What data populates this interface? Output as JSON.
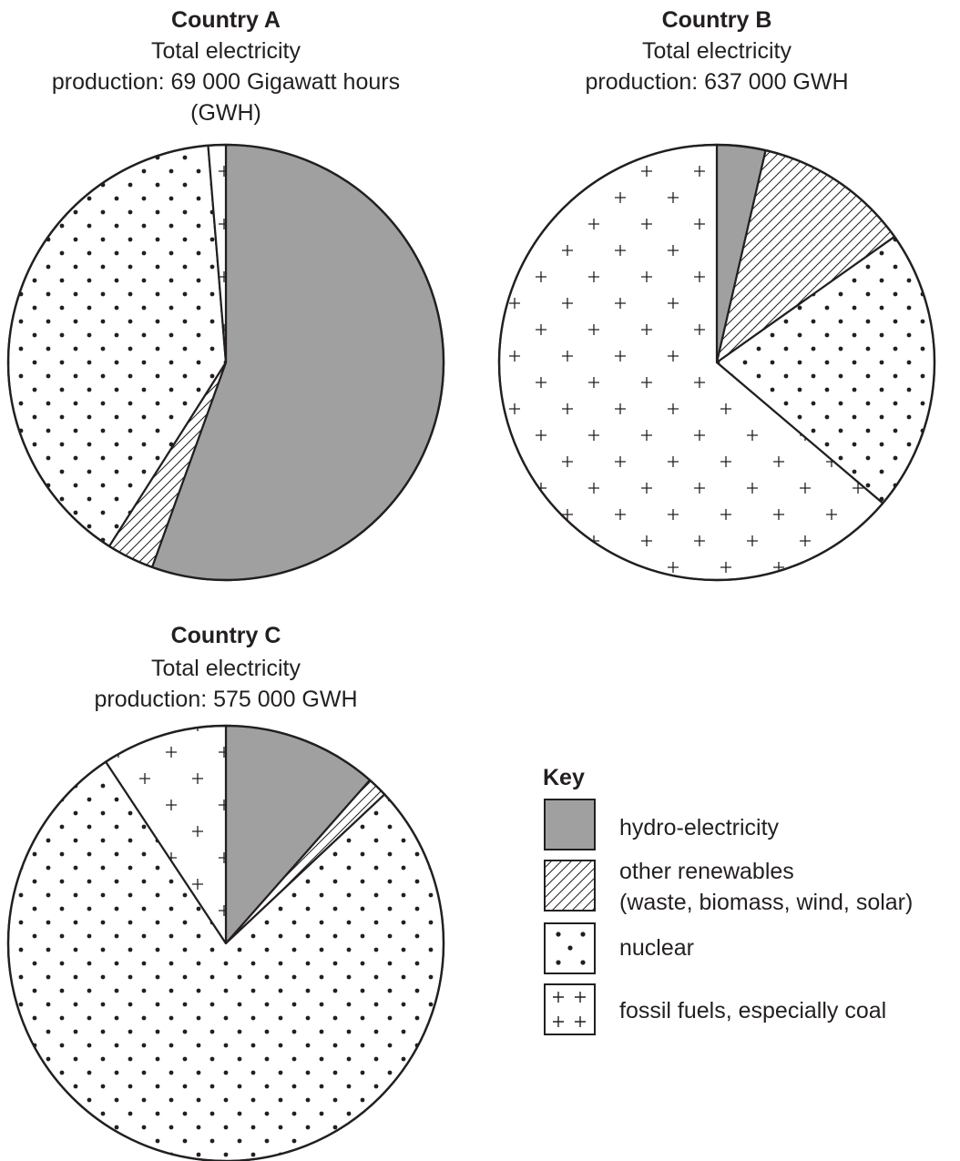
{
  "chart_data": [
    {
      "type": "pie",
      "title": "Country A",
      "subtitle": [
        "Total electricity",
        "production: 69 000 Gigawatt hours",
        "(GWH)"
      ],
      "slices": [
        {
          "label": "hydro-electricity",
          "value": 55.5
        },
        {
          "label": "other renewables (waste, biomass, wind, solar)",
          "value": 3.5
        },
        {
          "label": "nuclear",
          "value": 39.7
        },
        {
          "label": "fossil fuels, especially coal",
          "value": 1.3
        }
      ]
    },
    {
      "type": "pie",
      "title": "Country B",
      "subtitle": [
        "Total electricity",
        "production: 637 000 GWH"
      ],
      "slices": [
        {
          "label": "hydro-electricity",
          "value": 3.6
        },
        {
          "label": "other renewables (waste, biomass, wind, solar)",
          "value": 11.6
        },
        {
          "label": "nuclear",
          "value": 21.0
        },
        {
          "label": "fossil fuels, especially coal",
          "value": 63.8
        }
      ]
    },
    {
      "type": "pie",
      "title": "Country C",
      "subtitle": [
        "Total electricity",
        "production: 575 000 GWH"
      ],
      "slices": [
        {
          "label": "hydro-electricity",
          "value": 11.5
        },
        {
          "label": "other renewables (waste, biomass, wind, solar)",
          "value": 1.5
        },
        {
          "label": "nuclear",
          "value": 77.7
        },
        {
          "label": "fossil fuels, especially coal",
          "value": 9.3
        }
      ]
    }
  ],
  "key": {
    "title": "Key",
    "items": [
      {
        "id": "hydro",
        "lines": [
          "hydro-electricity"
        ],
        "pattern": "solid-grey"
      },
      {
        "id": "renewables",
        "lines": [
          "other renewables",
          "(waste, biomass, wind, solar)"
        ],
        "pattern": "diagonal-hatch"
      },
      {
        "id": "nuclear",
        "lines": [
          "nuclear"
        ],
        "pattern": "dots"
      },
      {
        "id": "fossil",
        "lines": [
          "fossil fuels, especially coal"
        ],
        "pattern": "crosses"
      }
    ]
  },
  "colors": {
    "hydro": "#a0a0a0",
    "line": "#231f20",
    "background": "#ffffff"
  }
}
